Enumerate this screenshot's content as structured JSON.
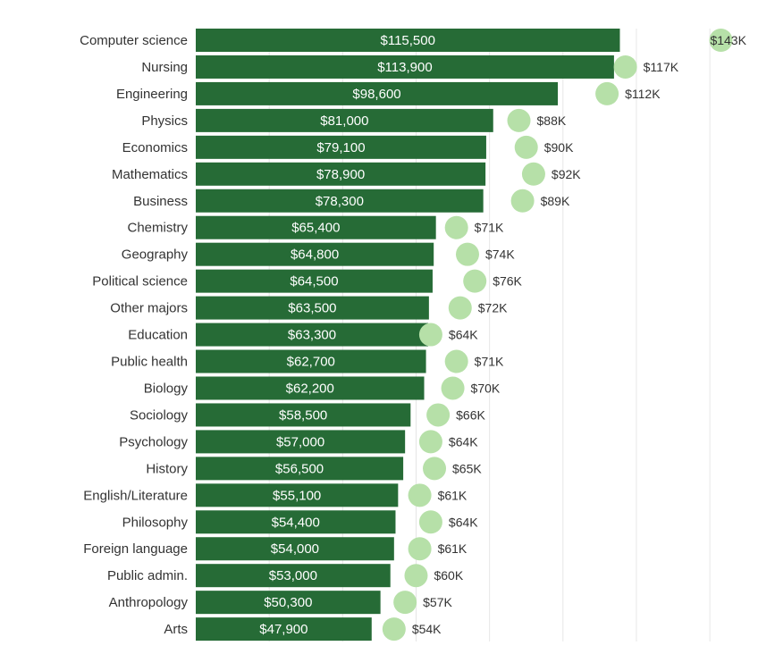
{
  "chart_data": {
    "type": "bar",
    "orientation": "horizontal",
    "categories": [
      "Computer science",
      "Nursing",
      "Engineering",
      "Physics",
      "Economics",
      "Mathematics",
      "Business",
      "Chemistry",
      "Geography",
      "Political science",
      "Other majors",
      "Education",
      "Public health",
      "Biology",
      "Sociology",
      "Psychology",
      "History",
      "English/Literature",
      "Philosophy",
      "Foreign language",
      "Public admin.",
      "Anthropology",
      "Arts"
    ],
    "series": [
      {
        "name": "Bar value",
        "mark": "bar",
        "color": "#266b36",
        "values": [
          115500,
          113900,
          98600,
          81000,
          79100,
          78900,
          78300,
          65400,
          64800,
          64500,
          63500,
          63300,
          62700,
          62200,
          58500,
          57000,
          56500,
          55100,
          54400,
          54000,
          53000,
          50300,
          47900
        ],
        "labels": [
          "$115,500",
          "$113,900",
          "$98,600",
          "$81,000",
          "$79,100",
          "$78,900",
          "$78,300",
          "$65,400",
          "$64,800",
          "$64,500",
          "$63,500",
          "$63,300",
          "$62,700",
          "$62,200",
          "$58,500",
          "$57,000",
          "$56,500",
          "$55,100",
          "$54,400",
          "$54,000",
          "$53,000",
          "$50,300",
          "$47,900"
        ]
      },
      {
        "name": "Dot value",
        "mark": "circle",
        "color": "#b6e0a8",
        "values": [
          143000,
          117000,
          112000,
          88000,
          90000,
          92000,
          89000,
          71000,
          74000,
          76000,
          72000,
          64000,
          71000,
          70000,
          66000,
          64000,
          65000,
          61000,
          64000,
          61000,
          60000,
          57000,
          54000
        ],
        "labels": [
          "$143K",
          "$117K",
          "$112K",
          "$88K",
          "$90K",
          "$92K",
          "$89K",
          "$71K",
          "$74K",
          "$76K",
          "$72K",
          "$64K",
          "$71K",
          "$70K",
          "$66K",
          "$64K",
          "$65K",
          "$61K",
          "$64K",
          "$61K",
          "$60K",
          "$57K",
          "$54K"
        ]
      }
    ],
    "xlim": [
      0,
      145000
    ],
    "grid": true,
    "title": "",
    "xlabel": "",
    "ylabel": ""
  }
}
